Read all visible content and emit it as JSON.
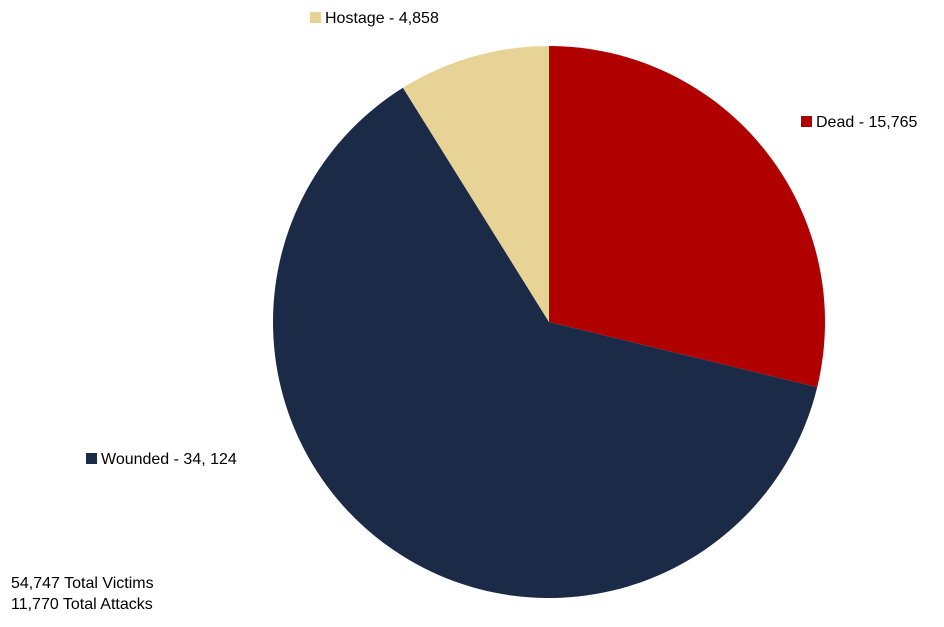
{
  "chart_data": {
    "type": "pie",
    "title": "",
    "slices": [
      {
        "name": "Dead",
        "label": "Dead - 15,765",
        "value": 15765,
        "color": "#b00000"
      },
      {
        "name": "Wounded",
        "label": "Wounded - 34, 124",
        "value": 34124,
        "color": "#1b2a47"
      },
      {
        "name": "Hostage",
        "label": "Hostage - 4,858",
        "value": 4858,
        "color": "#e6d395"
      }
    ],
    "start_angle_deg": 0,
    "direction": "clockwise"
  },
  "totals": {
    "victims": "54,747 Total Victims",
    "attacks": "11,770 Total Attacks"
  }
}
